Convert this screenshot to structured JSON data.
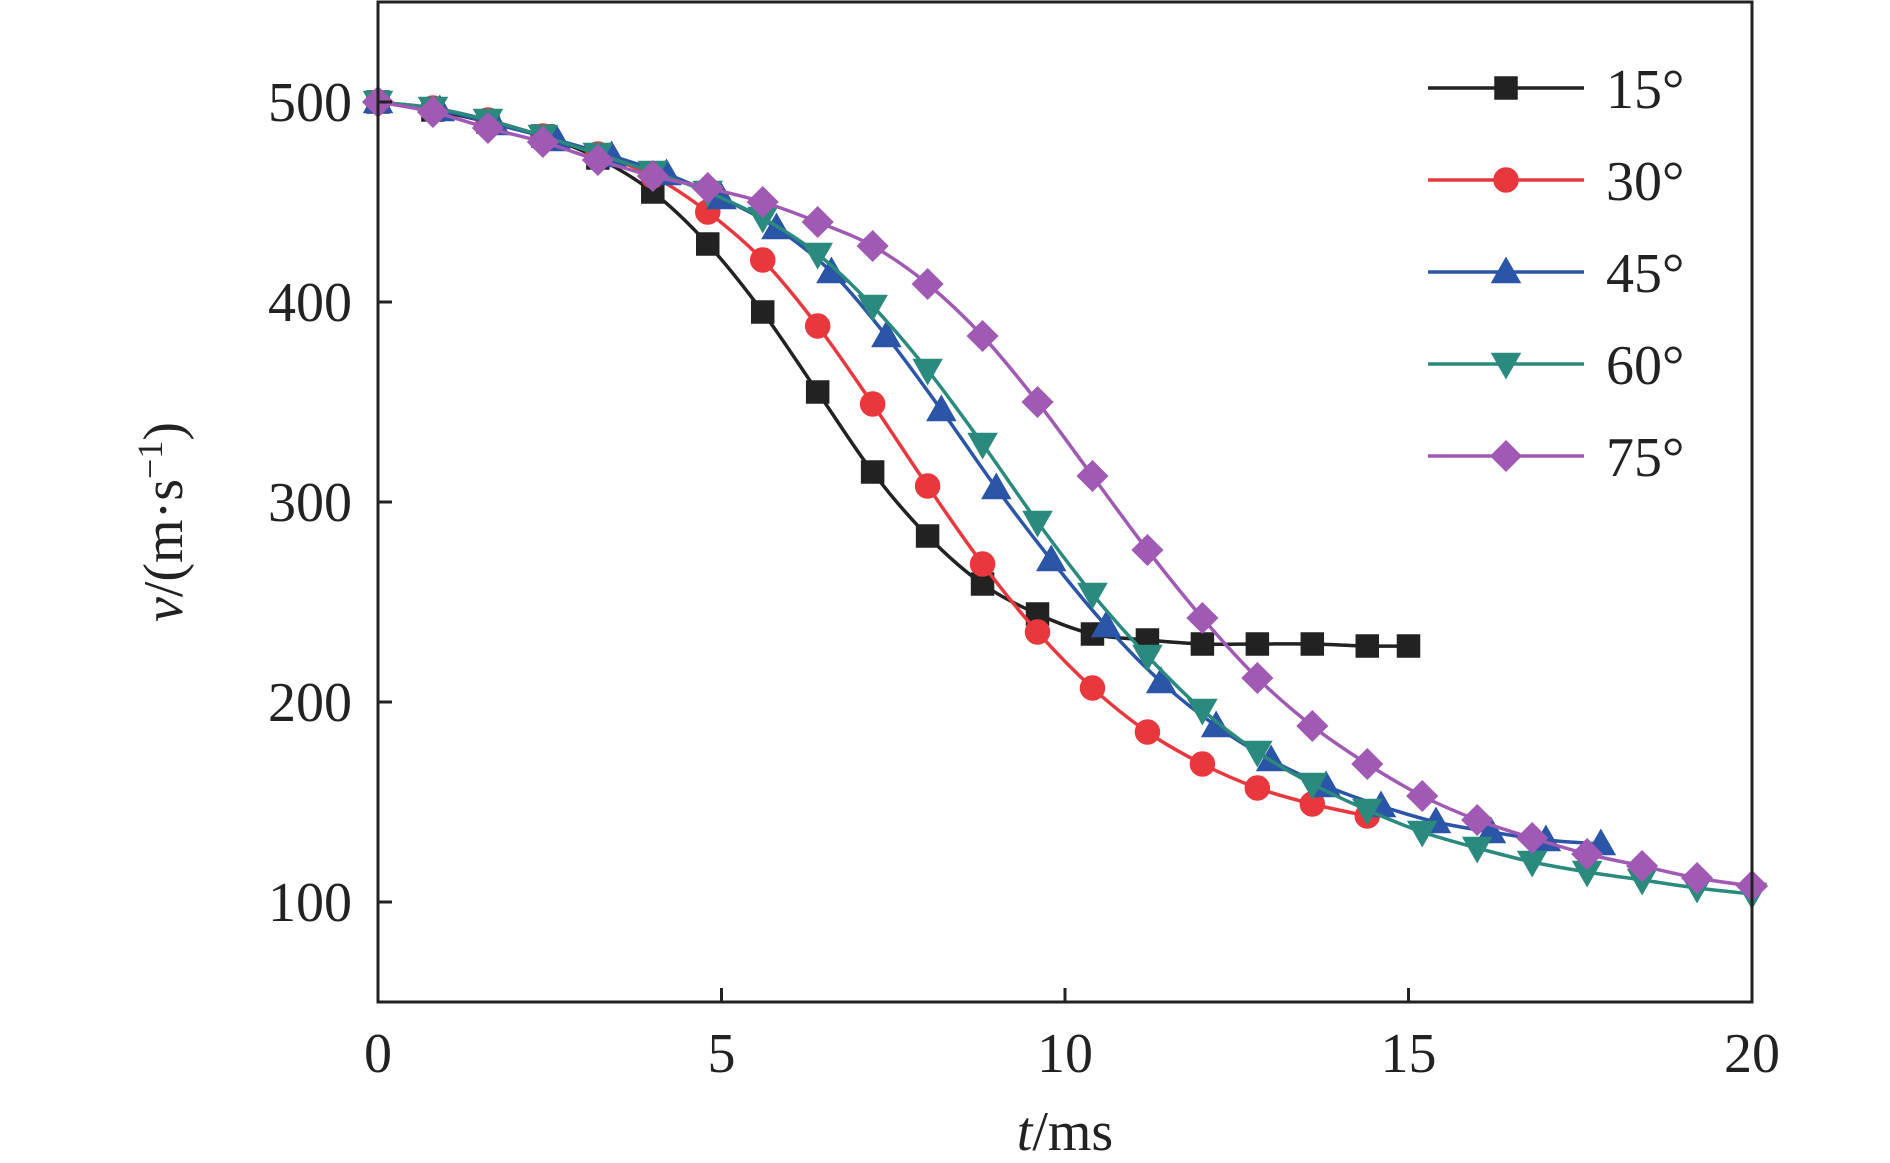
{
  "chart_data": {
    "type": "line",
    "xlabel_italic": "t",
    "xlabel_rest": "/ms",
    "ylabel_italic": "v",
    "ylabel_rest": "/(m·s",
    "ylabel_sup": "−1",
    "ylabel_close": ")",
    "xlim": [
      0,
      20
    ],
    "ylim": [
      50,
      550
    ],
    "xticks": [
      0,
      5,
      10,
      15,
      20
    ],
    "yticks": [
      100,
      200,
      300,
      400,
      500
    ],
    "grid": false,
    "legend_position": "top-right",
    "series": [
      {
        "name": "15°",
        "color": "#222222",
        "marker": "square",
        "points": [
          [
            0,
            500
          ],
          [
            0.8,
            496
          ],
          [
            1.6,
            490
          ],
          [
            2.4,
            483
          ],
          [
            3.2,
            472
          ],
          [
            4.0,
            455
          ],
          [
            4.8,
            429
          ],
          [
            5.6,
            395
          ],
          [
            6.4,
            355
          ],
          [
            7.2,
            315
          ],
          [
            8.0,
            283
          ],
          [
            8.8,
            259
          ],
          [
            9.6,
            244
          ],
          [
            10.4,
            234
          ],
          [
            11.2,
            231
          ],
          [
            12.0,
            229
          ],
          [
            12.8,
            229
          ],
          [
            13.6,
            229
          ],
          [
            14.4,
            228
          ],
          [
            15.0,
            228
          ]
        ]
      },
      {
        "name": "30°",
        "color": "#e8383d",
        "marker": "circle",
        "points": [
          [
            0,
            500
          ],
          [
            0.8,
            497
          ],
          [
            1.6,
            491
          ],
          [
            2.4,
            483
          ],
          [
            3.2,
            474
          ],
          [
            4.0,
            463
          ],
          [
            4.8,
            445
          ],
          [
            5.6,
            421
          ],
          [
            6.4,
            388
          ],
          [
            7.2,
            349
          ],
          [
            8.0,
            308
          ],
          [
            8.8,
            269
          ],
          [
            9.6,
            235
          ],
          [
            10.4,
            207
          ],
          [
            11.2,
            185
          ],
          [
            12.0,
            169
          ],
          [
            12.8,
            157
          ],
          [
            13.6,
            149
          ],
          [
            14.4,
            143
          ]
        ]
      },
      {
        "name": "45°",
        "color": "#2b55a7",
        "marker": "triangle-up",
        "points": [
          [
            0,
            500
          ],
          [
            0.9,
            496
          ],
          [
            1.7,
            489
          ],
          [
            2.6,
            481
          ],
          [
            3.4,
            473
          ],
          [
            4.2,
            464
          ],
          [
            5.0,
            452
          ],
          [
            5.8,
            437
          ],
          [
            6.6,
            415
          ],
          [
            7.4,
            383
          ],
          [
            8.2,
            346
          ],
          [
            9.0,
            307
          ],
          [
            9.8,
            271
          ],
          [
            10.6,
            238
          ],
          [
            11.4,
            210
          ],
          [
            12.2,
            188
          ],
          [
            13.0,
            171
          ],
          [
            13.8,
            158
          ],
          [
            14.6,
            148
          ],
          [
            15.4,
            140
          ],
          [
            16.2,
            135
          ],
          [
            17.0,
            131
          ],
          [
            17.8,
            129
          ]
        ]
      },
      {
        "name": "60°",
        "color": "#2b8a7e",
        "marker": "triangle-down",
        "points": [
          [
            0,
            500
          ],
          [
            0.8,
            497
          ],
          [
            1.6,
            491
          ],
          [
            2.4,
            483
          ],
          [
            3.2,
            474
          ],
          [
            4.0,
            465
          ],
          [
            4.8,
            455
          ],
          [
            5.6,
            442
          ],
          [
            6.4,
            424
          ],
          [
            7.2,
            398
          ],
          [
            8.0,
            366
          ],
          [
            8.8,
            329
          ],
          [
            9.6,
            290
          ],
          [
            10.4,
            254
          ],
          [
            11.2,
            223
          ],
          [
            12.0,
            196
          ],
          [
            12.8,
            175
          ],
          [
            13.6,
            159
          ],
          [
            14.4,
            146
          ],
          [
            15.2,
            135
          ],
          [
            16.0,
            127
          ],
          [
            16.8,
            120
          ],
          [
            17.6,
            115
          ],
          [
            18.4,
            111
          ],
          [
            19.2,
            107
          ],
          [
            20.0,
            104
          ]
        ]
      },
      {
        "name": "75°",
        "color": "#a05ab4",
        "marker": "diamond",
        "points": [
          [
            0,
            500
          ],
          [
            0.8,
            495
          ],
          [
            1.6,
            487
          ],
          [
            2.4,
            480
          ],
          [
            3.2,
            471
          ],
          [
            4.0,
            463
          ],
          [
            4.8,
            457
          ],
          [
            5.6,
            450
          ],
          [
            6.4,
            440
          ],
          [
            7.2,
            428
          ],
          [
            8.0,
            409
          ],
          [
            8.8,
            383
          ],
          [
            9.6,
            350
          ],
          [
            10.4,
            313
          ],
          [
            11.2,
            276
          ],
          [
            12.0,
            242
          ],
          [
            12.8,
            212
          ],
          [
            13.6,
            188
          ],
          [
            14.4,
            169
          ],
          [
            15.2,
            153
          ],
          [
            16.0,
            141
          ],
          [
            16.8,
            132
          ],
          [
            17.6,
            124
          ],
          [
            18.4,
            118
          ],
          [
            19.2,
            112
          ],
          [
            20.0,
            108
          ]
        ]
      }
    ]
  }
}
